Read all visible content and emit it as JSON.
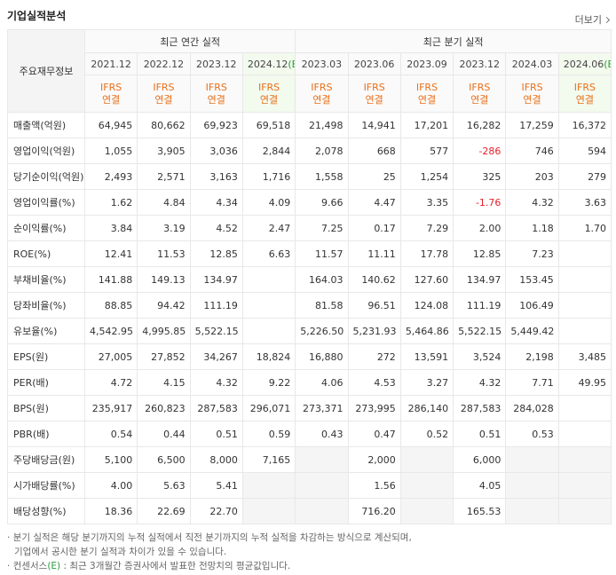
{
  "header": {
    "title": "기업실적분석",
    "more": "더보기"
  },
  "table": {
    "corner": "주요재무정보",
    "groups": [
      {
        "label": "최근 연간 실적",
        "columns": [
          {
            "period": "2021.12",
            "basis": "IFRS",
            "scope": "연결"
          },
          {
            "period": "2022.12",
            "basis": "IFRS",
            "scope": "연결"
          },
          {
            "period": "2023.12",
            "basis": "IFRS",
            "scope": "연결"
          },
          {
            "period": "2024.12",
            "mark": "(E)",
            "basis": "IFRS",
            "scope": "연결"
          }
        ]
      },
      {
        "label": "최근 분기 실적",
        "columns": [
          {
            "period": "2023.03",
            "basis": "IFRS",
            "scope": "연결"
          },
          {
            "period": "2023.06",
            "basis": "IFRS",
            "scope": "연결"
          },
          {
            "period": "2023.09",
            "basis": "IFRS",
            "scope": "연결"
          },
          {
            "period": "2023.12",
            "basis": "IFRS",
            "scope": "연결"
          },
          {
            "period": "2024.03",
            "basis": "IFRS",
            "scope": "연결"
          },
          {
            "period": "2024.06",
            "mark": "(E)",
            "basis": "IFRS",
            "scope": "연결"
          }
        ]
      }
    ],
    "rows": [
      {
        "label": "매출액(억원)",
        "cells": [
          "64,945",
          "80,662",
          "69,923",
          "69,518",
          "21,498",
          "14,941",
          "17,201",
          "16,282",
          "17,259",
          "16,372"
        ]
      },
      {
        "label": "영업이익(억원)",
        "cells": [
          "1,055",
          "3,905",
          "3,036",
          "2,844",
          "2,078",
          "668",
          "577",
          "-286",
          "746",
          "594"
        ]
      },
      {
        "label": "당기순이익(억원)",
        "cells": [
          "2,493",
          "2,571",
          "3,163",
          "1,716",
          "1,558",
          "25",
          "1,254",
          "325",
          "203",
          "279"
        ]
      },
      {
        "label": "영업이익률(%)",
        "cells": [
          "1.62",
          "4.84",
          "4.34",
          "4.09",
          "9.66",
          "4.47",
          "3.35",
          "-1.76",
          "4.32",
          "3.63"
        ]
      },
      {
        "label": "순이익률(%)",
        "cells": [
          "3.84",
          "3.19",
          "4.52",
          "2.47",
          "7.25",
          "0.17",
          "7.29",
          "2.00",
          "1.18",
          "1.70"
        ]
      },
      {
        "label": "ROE(%)",
        "cells": [
          "12.41",
          "11.53",
          "12.85",
          "6.63",
          "11.57",
          "11.11",
          "17.78",
          "12.85",
          "7.23",
          null
        ]
      },
      {
        "label": "부채비율(%)",
        "cells": [
          "141.88",
          "149.13",
          "134.97",
          null,
          "164.03",
          "140.62",
          "127.60",
          "134.97",
          "153.45",
          null
        ]
      },
      {
        "label": "당좌비율(%)",
        "cells": [
          "88.85",
          "94.42",
          "111.19",
          null,
          "81.58",
          "96.51",
          "124.08",
          "111.19",
          "106.49",
          null
        ]
      },
      {
        "label": "유보율(%)",
        "cells": [
          "4,542.95",
          "4,995.85",
          "5,522.15",
          null,
          "5,226.50",
          "5,231.93",
          "5,464.86",
          "5,522.15",
          "5,449.42",
          null
        ]
      },
      {
        "label": "EPS(원)",
        "cells": [
          "27,005",
          "27,852",
          "34,267",
          "18,824",
          "16,880",
          "272",
          "13,591",
          "3,524",
          "2,198",
          "3,485"
        ]
      },
      {
        "label": "PER(배)",
        "cells": [
          "4.72",
          "4.15",
          "4.32",
          "9.22",
          "4.06",
          "4.53",
          "3.27",
          "4.32",
          "7.71",
          "49.95"
        ]
      },
      {
        "label": "BPS(원)",
        "cells": [
          "235,917",
          "260,823",
          "287,583",
          "296,071",
          "273,371",
          "273,995",
          "286,140",
          "287,583",
          "284,028",
          null
        ]
      },
      {
        "label": "PBR(배)",
        "cells": [
          "0.54",
          "0.44",
          "0.51",
          "0.59",
          "0.43",
          "0.47",
          "0.52",
          "0.51",
          "0.53",
          null
        ]
      },
      {
        "label": "주당배당금(원)",
        "cells": [
          "5,100",
          "6,500",
          "8,000",
          "7,165",
          null,
          "2,000",
          null,
          "6,000",
          null,
          null
        ]
      },
      {
        "label": "시가배당률(%)",
        "cells": [
          "4.00",
          "5.63",
          "5.41",
          null,
          null,
          "1.56",
          null,
          "4.05",
          null,
          null
        ]
      },
      {
        "label": "배당성향(%)",
        "cells": [
          "18.36",
          "22.69",
          "22.70",
          null,
          null,
          "716.20",
          null,
          "165.53",
          null,
          null
        ]
      }
    ]
  },
  "notes": [
    {
      "text": "분기 실적은 해당 분기까지의 누적 실적에서 직전 분기까지의 누적 실적을 차감하는 방식으로 계산되며,",
      "cont": "기업에서 공시한 분기 실적과 차이가 있을 수 있습니다."
    },
    {
      "before": "컨센서스",
      "mark": "(E)",
      "after": " : 최근 3개월간 증권사에서 발표한 전망치의 평균값입니다."
    }
  ]
}
